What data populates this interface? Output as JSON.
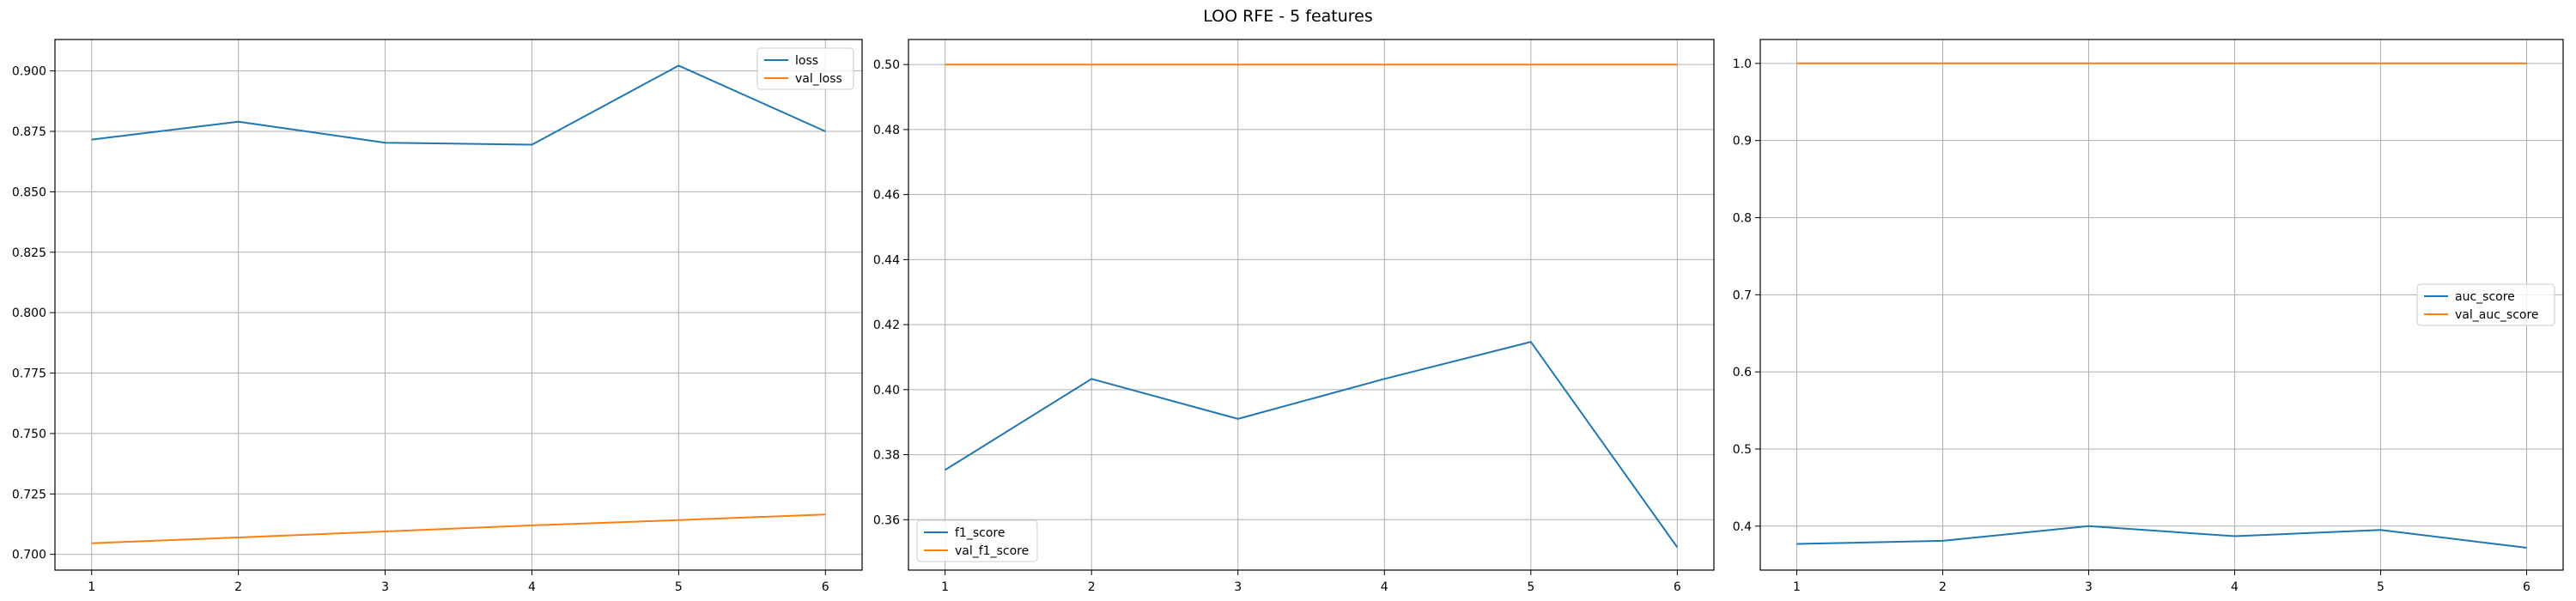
{
  "figure": {
    "title": "LOO RFE - 5 features"
  },
  "colors": {
    "series1": "#1f77b4",
    "series2": "#ff7f0e",
    "grid": "#b0b0b0",
    "axis": "#000000"
  },
  "chart_data": [
    {
      "type": "line",
      "x": [
        1,
        2,
        3,
        4,
        5,
        6
      ],
      "xlim": [
        0.75,
        6.25
      ],
      "ylim": [
        0.6935,
        0.913
      ],
      "yticks": [
        0.7,
        0.725,
        0.75,
        0.775,
        0.8,
        0.825,
        0.85,
        0.875,
        0.9
      ],
      "ytick_labels": [
        "0.700",
        "0.725",
        "0.750",
        "0.775",
        "0.800",
        "0.825",
        "0.850",
        "0.875",
        "0.900"
      ],
      "xticks": [
        1,
        2,
        3,
        4,
        5,
        6
      ],
      "xtick_labels": [
        "1",
        "2",
        "3",
        "4",
        "5",
        "6"
      ],
      "grid": true,
      "legend_loc": "upper-right",
      "series": [
        {
          "name": "loss",
          "values": [
            0.8716,
            0.879,
            0.8703,
            0.8695,
            0.9022,
            0.875
          ]
        },
        {
          "name": "val_loss",
          "values": [
            0.7046,
            0.707,
            0.7095,
            0.712,
            0.7142,
            0.7165
          ]
        }
      ]
    },
    {
      "type": "line",
      "x": [
        1,
        2,
        3,
        4,
        5,
        6
      ],
      "xlim": [
        0.75,
        6.25
      ],
      "ylim": [
        0.3445,
        0.5077
      ],
      "yticks": [
        0.36,
        0.38,
        0.4,
        0.42,
        0.44,
        0.46,
        0.48,
        0.5
      ],
      "ytick_labels": [
        "0.36",
        "0.38",
        "0.40",
        "0.42",
        "0.44",
        "0.46",
        "0.48",
        "0.50"
      ],
      "xticks": [
        1,
        2,
        3,
        4,
        5,
        6
      ],
      "xtick_labels": [
        "1",
        "2",
        "3",
        "4",
        "5",
        "6"
      ],
      "grid": true,
      "legend_loc": "lower-left",
      "series": [
        {
          "name": "f1_score",
          "values": [
            0.3753,
            0.4033,
            0.391,
            0.4033,
            0.4147,
            0.3515
          ]
        },
        {
          "name": "val_f1_score",
          "values": [
            0.5,
            0.5,
            0.5,
            0.5,
            0.5,
            0.5
          ]
        }
      ]
    },
    {
      "type": "line",
      "x": [
        1,
        2,
        3,
        4,
        5,
        6
      ],
      "xlim": [
        0.75,
        6.25
      ],
      "ylim": [
        0.343,
        1.031
      ],
      "yticks": [
        0.4,
        0.5,
        0.6,
        0.7,
        0.8,
        0.9,
        1.0
      ],
      "ytick_labels": [
        "0.4",
        "0.5",
        "0.6",
        "0.7",
        "0.8",
        "0.9",
        "1.0"
      ],
      "xticks": [
        1,
        2,
        3,
        4,
        5,
        6
      ],
      "xtick_labels": [
        "1",
        "2",
        "3",
        "4",
        "5",
        "6"
      ],
      "grid": true,
      "legend_loc": "center-right",
      "series": [
        {
          "name": "auc_score",
          "values": [
            0.377,
            0.381,
            0.4,
            0.387,
            0.395,
            0.372
          ]
        },
        {
          "name": "val_auc_score",
          "values": [
            1.0,
            1.0,
            1.0,
            1.0,
            1.0,
            1.0
          ]
        }
      ]
    }
  ]
}
